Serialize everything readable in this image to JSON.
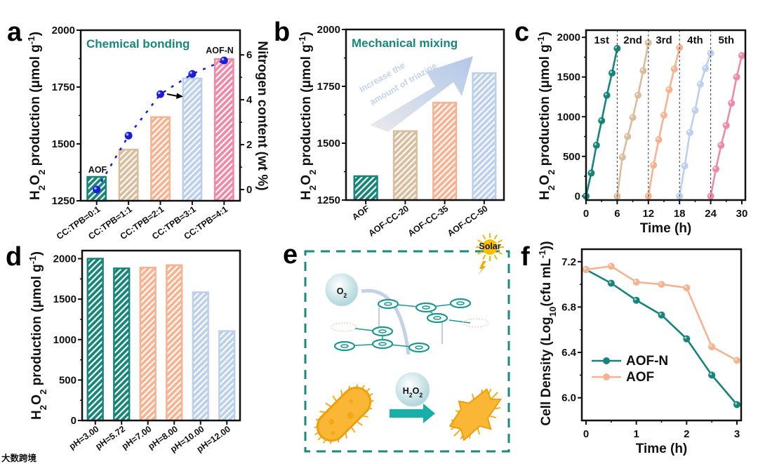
{
  "panel_letters": {
    "a": "a",
    "b": "b",
    "c": "c",
    "d": "d",
    "e": "e",
    "f": "f"
  },
  "watermark": "大数跨境",
  "colors": {
    "teal": "#15857a",
    "tan": "#d9bd9c",
    "orange": "#f7b391",
    "blue": "#bcd0ec",
    "pink": "#ee8aa8",
    "nitrogen": "#1c1cd8"
  },
  "chart_data": [
    {
      "id": "a",
      "type": "bar",
      "title": "Chemical bonding",
      "ylabel_parts": [
        "H",
        "2",
        "O",
        "2",
        " production (μmol g",
        "-1",
        ")"
      ],
      "categories": [
        "CC:TPB=0:1",
        "CC:TPB=1:1",
        "CC:TPB=2:1",
        "CC:TPB=3:1",
        "CC:TPB=4:1"
      ],
      "values": [
        1355,
        1475,
        1618,
        1788,
        1873
      ],
      "bar_colors": [
        "#15857a",
        "#d9bd9c",
        "#f7b391",
        "#bcd0ec",
        "#ee8aa8"
      ],
      "ylim": [
        1250,
        2000
      ],
      "yticks": [
        "1250",
        "1500",
        "1750",
        "2000"
      ],
      "annotations": {
        "first": "AOF",
        "last": "AOF-N"
      },
      "secondary": {
        "ylabel": "Nitrogen content (wt %)",
        "values": [
          0,
          2.4,
          4.25,
          5.15,
          5.75
        ],
        "ylim": [
          -0.5,
          7.1
        ],
        "yticks": [
          "0",
          "2",
          "4",
          "6"
        ]
      }
    },
    {
      "id": "b",
      "type": "bar",
      "title": "Mechanical mixing",
      "ylabel_parts": [
        "H",
        "2",
        "O",
        "2",
        " production (μmol g",
        "-1",
        ")"
      ],
      "categories": [
        "AOF",
        "AOF-CC-20",
        "AOF-CC-35",
        "AOF-CC-50"
      ],
      "values": [
        1355,
        1553,
        1678,
        1808
      ],
      "bar_colors": [
        "#15857a",
        "#d9bd9c",
        "#f7b391",
        "#bcd0ec"
      ],
      "ylim": [
        1250,
        2000
      ],
      "yticks": [
        "1250",
        "1500",
        "1750",
        "2000"
      ],
      "arrow_text": [
        "Increase the",
        "amount of triazine"
      ]
    },
    {
      "id": "c",
      "type": "line",
      "ylabel_parts": [
        "H",
        "2",
        "O",
        "2",
        " production (μmol g",
        "-1",
        ")"
      ],
      "xlabel": "Time (h)",
      "xlim": [
        0,
        30
      ],
      "xticks": [
        "0",
        "6",
        "12",
        "18",
        "24",
        "30"
      ],
      "ylim": [
        -50,
        2090
      ],
      "yticks": [
        "0",
        "500",
        "1000",
        "1500",
        "2000"
      ],
      "cycle_labels": [
        "1st",
        "2nd",
        "3rd",
        "4th",
        "5th"
      ],
      "series": [
        {
          "name": "1st",
          "color": "#15857a",
          "x": [
            0,
            1,
            2,
            3,
            4,
            5,
            6
          ],
          "y": [
            0,
            290,
            640,
            950,
            1270,
            1550,
            1860
          ]
        },
        {
          "name": "2nd",
          "color": "#d9bd9c",
          "x": [
            6,
            7,
            8,
            9,
            10,
            11,
            12
          ],
          "y": [
            0,
            490,
            750,
            990,
            1270,
            1580,
            1930
          ]
        },
        {
          "name": "3rd",
          "color": "#f7b391",
          "x": [
            12,
            13,
            14,
            15,
            16,
            17,
            18
          ],
          "y": [
            0,
            390,
            710,
            1020,
            1340,
            1600,
            1870
          ]
        },
        {
          "name": "4th",
          "color": "#bcd0ec",
          "x": [
            18,
            19,
            20,
            21,
            22,
            23,
            24
          ],
          "y": [
            0,
            380,
            800,
            1080,
            1410,
            1610,
            1800
          ]
        },
        {
          "name": "5th",
          "color": "#ee8aa8",
          "x": [
            24,
            25,
            26,
            27,
            28,
            29,
            30
          ],
          "y": [
            0,
            340,
            640,
            890,
            1170,
            1500,
            1770
          ]
        }
      ]
    },
    {
      "id": "d",
      "type": "bar",
      "ylabel_parts": [
        "H",
        "2",
        "O",
        "2",
        " production (μmol g",
        "-1",
        ")"
      ],
      "categories": [
        "pH=3.00",
        "pH=5.72",
        "pH=7.00",
        "pH=8.00",
        "pH=10.00",
        "pH=12.00"
      ],
      "values": [
        2000,
        1880,
        1890,
        1920,
        1585,
        1105
      ],
      "bar_colors": [
        "#15857a",
        "#15857a",
        "#f7b391",
        "#f7b391",
        "#bcd0ec",
        "#bcd0ec"
      ],
      "ylim": [
        0,
        2100
      ],
      "yticks": [
        "0",
        "500",
        "1000",
        "1500",
        "2000"
      ]
    },
    {
      "id": "f",
      "type": "line",
      "ylabel_parts": [
        "Cell Density (Log",
        "10",
        "(cfu mL",
        "-1",
        "))"
      ],
      "xlabel": "Time (h)",
      "xlim": [
        0,
        3
      ],
      "xticks": [
        "0",
        "1",
        "2",
        "3"
      ],
      "ylim": [
        5.8,
        7.31
      ],
      "yticks": [
        "6.0",
        "6.4",
        "6.8",
        "7.2"
      ],
      "legend_position": "bottom-left",
      "series": [
        {
          "name": "AOF-N",
          "color": "#15857a",
          "x": [
            0,
            0.5,
            1,
            1.5,
            2,
            2.5,
            3
          ],
          "y": [
            7.13,
            7.01,
            6.86,
            6.73,
            6.52,
            6.2,
            5.94
          ]
        },
        {
          "name": "AOF",
          "color": "#f7b391",
          "x": [
            0,
            0.5,
            1,
            1.5,
            2,
            2.5,
            3
          ],
          "y": [
            7.13,
            7.16,
            7.02,
            7.0,
            6.97,
            6.45,
            6.33
          ]
        }
      ]
    }
  ],
  "schematic": {
    "o2_label": [
      "O",
      "2"
    ],
    "h2o2_label": [
      "H",
      "2",
      "O",
      "2"
    ],
    "sun_label": "Solar"
  }
}
